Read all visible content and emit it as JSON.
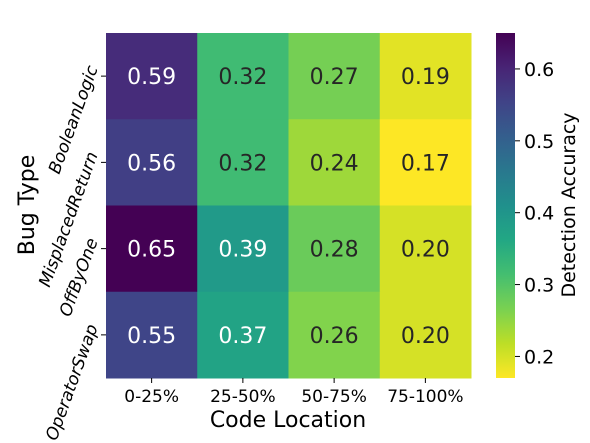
{
  "chart_data": {
    "type": "heatmap",
    "xlabel": "Code Location",
    "ylabel": "Bug Type",
    "x_categories": [
      "0-25%",
      "25-50%",
      "50-75%",
      "75-100%"
    ],
    "y_categories": [
      "BooleanLogic",
      "MisplacedReturn",
      "OffByOne",
      "OperatorSwap"
    ],
    "values": [
      [
        0.59,
        0.32,
        0.27,
        0.19
      ],
      [
        0.56,
        0.32,
        0.24,
        0.17
      ],
      [
        0.65,
        0.39,
        0.28,
        0.2
      ],
      [
        0.55,
        0.37,
        0.26,
        0.2
      ]
    ],
    "value_labels": [
      [
        "0.59",
        "0.32",
        "0.27",
        "0.19"
      ],
      [
        "0.56",
        "0.32",
        "0.24",
        "0.17"
      ],
      [
        "0.65",
        "0.39",
        "0.28",
        "0.20"
      ],
      [
        "0.55",
        "0.37",
        "0.26",
        "0.20"
      ]
    ],
    "colormap": "viridis",
    "colorbar": {
      "label": "Detection Accuracy",
      "range": [
        0.17,
        0.65
      ],
      "ticks": [
        0.2,
        0.3,
        0.4,
        0.5,
        0.6
      ],
      "tick_labels": [
        "0.2",
        "0.3",
        "0.4",
        "0.5",
        "0.6"
      ]
    }
  }
}
